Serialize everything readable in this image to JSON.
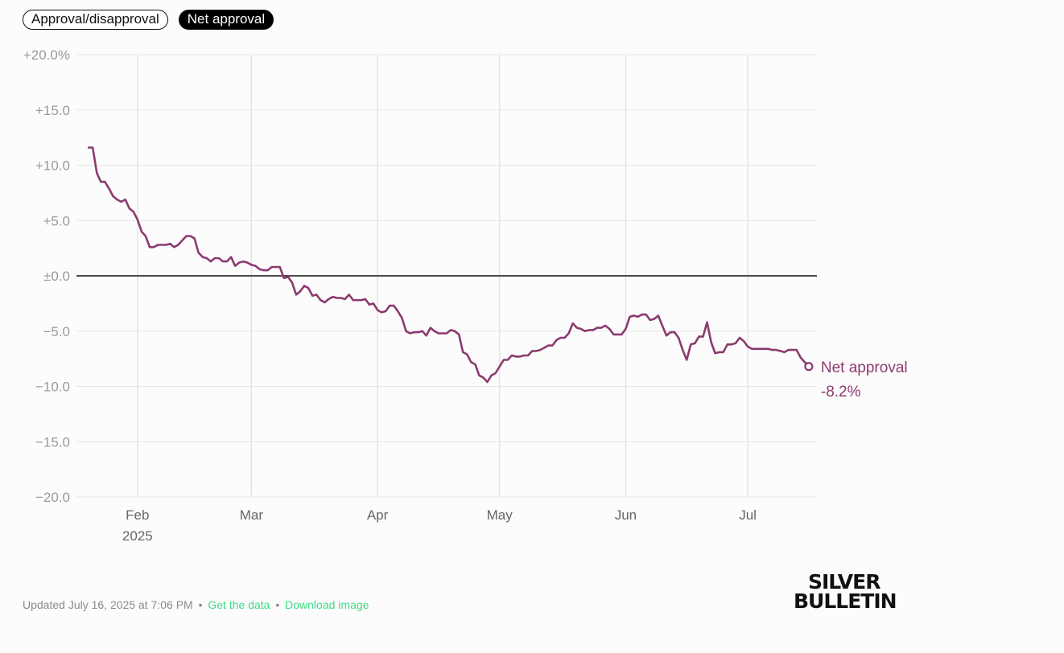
{
  "toggles": [
    {
      "label": "Approval/disapproval",
      "active": false
    },
    {
      "label": "Net approval",
      "active": true
    }
  ],
  "chart_data": {
    "type": "line",
    "title": "",
    "xlabel": "",
    "ylabel": "",
    "ylim": [
      -20,
      20
    ],
    "y_ticks": [
      {
        "value": 20,
        "label": "+20.0%"
      },
      {
        "value": 15,
        "label": "+15.0"
      },
      {
        "value": 10,
        "label": "+10.0"
      },
      {
        "value": 5,
        "label": "+5.0"
      },
      {
        "value": 0,
        "label": "±0.0"
      },
      {
        "value": -5,
        "label": "−5.0"
      },
      {
        "value": -10,
        "label": "−10.0"
      },
      {
        "value": -15,
        "label": "−15.0"
      },
      {
        "value": -20,
        "label": "−20.0"
      }
    ],
    "xlim": [
      "2025-01-17",
      "2025-07-18"
    ],
    "x_ticks": [
      {
        "date": "2025-02-01",
        "label": "Feb",
        "sublabel": "2025"
      },
      {
        "date": "2025-03-01",
        "label": "Mar"
      },
      {
        "date": "2025-04-01",
        "label": "Apr"
      },
      {
        "date": "2025-05-01",
        "label": "May"
      },
      {
        "date": "2025-06-01",
        "label": "Jun"
      },
      {
        "date": "2025-07-01",
        "label": "Jul"
      }
    ],
    "grid": true,
    "zero_line": true,
    "series": [
      {
        "name": "Net approval",
        "color": "#8b3a6e",
        "end_value_label": "-8.2%",
        "points": [
          [
            "2025-01-20",
            11.6
          ],
          [
            "2025-01-21",
            11.6
          ],
          [
            "2025-01-22",
            9.3
          ],
          [
            "2025-01-23",
            8.5
          ],
          [
            "2025-01-24",
            8.5
          ],
          [
            "2025-01-25",
            7.9
          ],
          [
            "2025-01-26",
            7.2
          ],
          [
            "2025-01-27",
            6.9
          ],
          [
            "2025-01-28",
            6.7
          ],
          [
            "2025-01-29",
            6.9
          ],
          [
            "2025-01-30",
            6.1
          ],
          [
            "2025-01-31",
            5.8
          ],
          [
            "2025-02-01",
            5.1
          ],
          [
            "2025-02-02",
            4.0
          ],
          [
            "2025-02-03",
            3.6
          ],
          [
            "2025-02-04",
            2.6
          ],
          [
            "2025-02-05",
            2.6
          ],
          [
            "2025-02-06",
            2.8
          ],
          [
            "2025-02-07",
            2.8
          ],
          [
            "2025-02-08",
            2.8
          ],
          [
            "2025-02-09",
            2.9
          ],
          [
            "2025-02-10",
            2.6
          ],
          [
            "2025-02-11",
            2.8
          ],
          [
            "2025-02-12",
            3.2
          ],
          [
            "2025-02-13",
            3.6
          ],
          [
            "2025-02-14",
            3.6
          ],
          [
            "2025-02-15",
            3.4
          ],
          [
            "2025-02-16",
            2.1
          ],
          [
            "2025-02-17",
            1.7
          ],
          [
            "2025-02-18",
            1.6
          ],
          [
            "2025-02-19",
            1.3
          ],
          [
            "2025-02-20",
            1.6
          ],
          [
            "2025-02-21",
            1.6
          ],
          [
            "2025-02-22",
            1.3
          ],
          [
            "2025-02-23",
            1.3
          ],
          [
            "2025-02-24",
            1.7
          ],
          [
            "2025-02-25",
            0.9
          ],
          [
            "2025-02-26",
            1.2
          ],
          [
            "2025-02-27",
            1.3
          ],
          [
            "2025-02-28",
            1.2
          ],
          [
            "2025-03-01",
            1.0
          ],
          [
            "2025-03-02",
            0.9
          ],
          [
            "2025-03-03",
            0.6
          ],
          [
            "2025-03-04",
            0.5
          ],
          [
            "2025-03-05",
            0.5
          ],
          [
            "2025-03-06",
            0.8
          ],
          [
            "2025-03-07",
            0.8
          ],
          [
            "2025-03-08",
            0.8
          ],
          [
            "2025-03-09",
            -0.2
          ],
          [
            "2025-03-10",
            -0.1
          ],
          [
            "2025-03-11",
            -0.6
          ],
          [
            "2025-03-12",
            -1.7
          ],
          [
            "2025-03-13",
            -1.4
          ],
          [
            "2025-03-14",
            -0.9
          ],
          [
            "2025-03-15",
            -1.1
          ],
          [
            "2025-03-16",
            -1.8
          ],
          [
            "2025-03-17",
            -1.7
          ],
          [
            "2025-03-18",
            -2.2
          ],
          [
            "2025-03-19",
            -2.4
          ],
          [
            "2025-03-20",
            -2.1
          ],
          [
            "2025-03-21",
            -1.9
          ],
          [
            "2025-03-22",
            -2.0
          ],
          [
            "2025-03-23",
            -2.0
          ],
          [
            "2025-03-24",
            -2.1
          ],
          [
            "2025-03-25",
            -1.7
          ],
          [
            "2025-03-26",
            -2.2
          ],
          [
            "2025-03-27",
            -2.2
          ],
          [
            "2025-03-28",
            -2.2
          ],
          [
            "2025-03-29",
            -2.1
          ],
          [
            "2025-03-30",
            -2.6
          ],
          [
            "2025-03-31",
            -2.5
          ],
          [
            "2025-04-01",
            -3.1
          ],
          [
            "2025-04-02",
            -3.3
          ],
          [
            "2025-04-03",
            -3.2
          ],
          [
            "2025-04-04",
            -2.7
          ],
          [
            "2025-04-05",
            -2.7
          ],
          [
            "2025-04-06",
            -3.2
          ],
          [
            "2025-04-07",
            -3.8
          ],
          [
            "2025-04-08",
            -5.0
          ],
          [
            "2025-04-09",
            -5.2
          ],
          [
            "2025-04-10",
            -5.1
          ],
          [
            "2025-04-11",
            -5.1
          ],
          [
            "2025-04-12",
            -5.0
          ],
          [
            "2025-04-13",
            -5.4
          ],
          [
            "2025-04-14",
            -4.7
          ],
          [
            "2025-04-15",
            -5.0
          ],
          [
            "2025-04-16",
            -5.2
          ],
          [
            "2025-04-17",
            -5.2
          ],
          [
            "2025-04-18",
            -5.2
          ],
          [
            "2025-04-19",
            -4.9
          ],
          [
            "2025-04-20",
            -5.0
          ],
          [
            "2025-04-21",
            -5.3
          ],
          [
            "2025-04-22",
            -6.9
          ],
          [
            "2025-04-23",
            -7.1
          ],
          [
            "2025-04-24",
            -7.8
          ],
          [
            "2025-04-25",
            -8.0
          ],
          [
            "2025-04-26",
            -9.0
          ],
          [
            "2025-04-27",
            -9.2
          ],
          [
            "2025-04-28",
            -9.6
          ],
          [
            "2025-04-29",
            -9.0
          ],
          [
            "2025-04-30",
            -8.8
          ],
          [
            "2025-05-01",
            -8.2
          ],
          [
            "2025-05-02",
            -7.6
          ],
          [
            "2025-05-03",
            -7.6
          ],
          [
            "2025-05-04",
            -7.2
          ],
          [
            "2025-05-05",
            -7.3
          ],
          [
            "2025-05-06",
            -7.3
          ],
          [
            "2025-05-07",
            -7.2
          ],
          [
            "2025-05-08",
            -7.2
          ],
          [
            "2025-05-09",
            -6.8
          ],
          [
            "2025-05-10",
            -6.8
          ],
          [
            "2025-05-11",
            -6.7
          ],
          [
            "2025-05-12",
            -6.5
          ],
          [
            "2025-05-13",
            -6.3
          ],
          [
            "2025-05-14",
            -6.3
          ],
          [
            "2025-05-15",
            -5.8
          ],
          [
            "2025-05-16",
            -5.6
          ],
          [
            "2025-05-17",
            -5.6
          ],
          [
            "2025-05-18",
            -5.2
          ],
          [
            "2025-05-19",
            -4.3
          ],
          [
            "2025-05-20",
            -4.7
          ],
          [
            "2025-05-21",
            -4.8
          ],
          [
            "2025-05-22",
            -5.0
          ],
          [
            "2025-05-23",
            -4.9
          ],
          [
            "2025-05-24",
            -4.9
          ],
          [
            "2025-05-25",
            -4.7
          ],
          [
            "2025-05-26",
            -4.7
          ],
          [
            "2025-05-27",
            -4.5
          ],
          [
            "2025-05-28",
            -4.8
          ],
          [
            "2025-05-29",
            -5.3
          ],
          [
            "2025-05-30",
            -5.3
          ],
          [
            "2025-05-31",
            -5.3
          ],
          [
            "2025-06-01",
            -4.8
          ],
          [
            "2025-06-02",
            -3.7
          ],
          [
            "2025-06-03",
            -3.6
          ],
          [
            "2025-06-04",
            -3.7
          ],
          [
            "2025-06-05",
            -3.5
          ],
          [
            "2025-06-06",
            -3.5
          ],
          [
            "2025-06-07",
            -4.0
          ],
          [
            "2025-06-08",
            -3.9
          ],
          [
            "2025-06-09",
            -3.6
          ],
          [
            "2025-06-10",
            -4.5
          ],
          [
            "2025-06-11",
            -5.4
          ],
          [
            "2025-06-12",
            -5.1
          ],
          [
            "2025-06-13",
            -5.1
          ],
          [
            "2025-06-14",
            -5.6
          ],
          [
            "2025-06-15",
            -6.7
          ],
          [
            "2025-06-16",
            -7.6
          ],
          [
            "2025-06-17",
            -6.2
          ],
          [
            "2025-06-18",
            -6.1
          ],
          [
            "2025-06-19",
            -5.5
          ],
          [
            "2025-06-20",
            -5.5
          ],
          [
            "2025-06-21",
            -4.2
          ],
          [
            "2025-06-22",
            -6.0
          ],
          [
            "2025-06-23",
            -7.0
          ],
          [
            "2025-06-24",
            -6.9
          ],
          [
            "2025-06-25",
            -6.9
          ],
          [
            "2025-06-26",
            -6.2
          ],
          [
            "2025-06-27",
            -6.2
          ],
          [
            "2025-06-28",
            -6.1
          ],
          [
            "2025-06-29",
            -5.6
          ],
          [
            "2025-06-30",
            -5.9
          ],
          [
            "2025-07-01",
            -6.4
          ],
          [
            "2025-07-02",
            -6.6
          ],
          [
            "2025-07-03",
            -6.6
          ],
          [
            "2025-07-04",
            -6.6
          ],
          [
            "2025-07-05",
            -6.6
          ],
          [
            "2025-07-06",
            -6.6
          ],
          [
            "2025-07-07",
            -6.7
          ],
          [
            "2025-07-08",
            -6.7
          ],
          [
            "2025-07-09",
            -6.8
          ],
          [
            "2025-07-10",
            -6.9
          ],
          [
            "2025-07-11",
            -6.7
          ],
          [
            "2025-07-12",
            -6.7
          ],
          [
            "2025-07-13",
            -6.7
          ],
          [
            "2025-07-14",
            -7.4
          ],
          [
            "2025-07-15",
            -7.8
          ],
          [
            "2025-07-16",
            -8.2
          ]
        ]
      }
    ]
  },
  "footer": {
    "updated": "Updated July 16, 2025 at 7:06 PM",
    "separator": "•",
    "get_data": "Get the data",
    "download": "Download image"
  },
  "brand": {
    "line1": "SILVER",
    "line2": "BULLETIN"
  }
}
